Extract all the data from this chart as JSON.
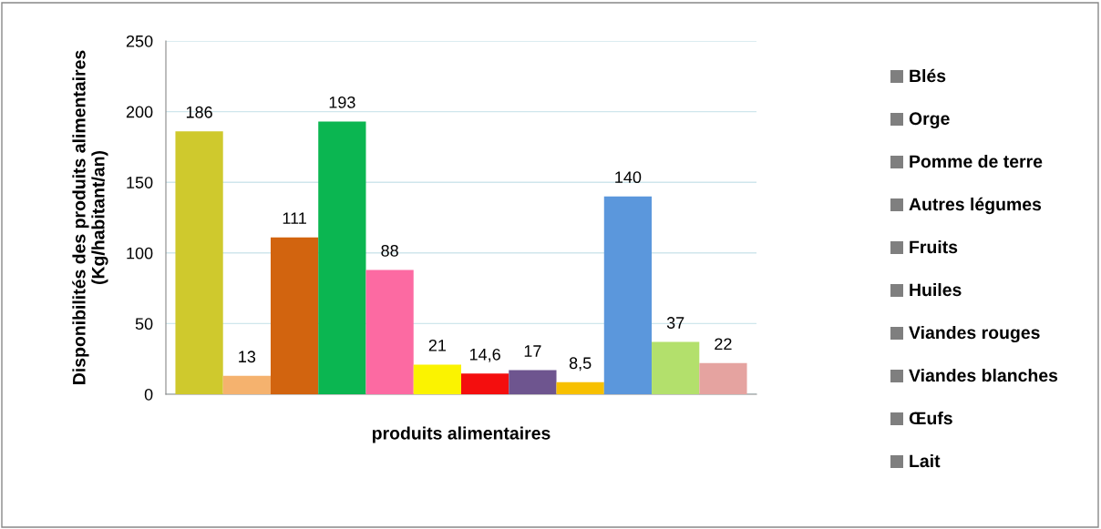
{
  "chart_data": {
    "type": "bar",
    "xlabel": "produits alimentaires",
    "ylabel": "Disponibilités des produits alimentaires\n(Kg/habitant/an)",
    "categories": [
      null,
      null,
      null,
      null,
      null,
      null,
      null,
      null,
      null,
      null,
      null,
      null
    ],
    "values": [
      186,
      13,
      111,
      193,
      88,
      21,
      14.6,
      17,
      8.5,
      140,
      37,
      22
    ],
    "value_labels": [
      "186",
      "13",
      "111",
      "193",
      "88",
      "21",
      "14,6",
      "17",
      "8,5",
      "140",
      "37",
      "22"
    ],
    "colors": [
      "#cfc92d",
      "#f5b26e",
      "#d2640f",
      "#0bb651",
      "#fc6aa2",
      "#fbf300",
      "#f40e0e",
      "#6e558f",
      "#f7c000",
      "#5b97dc",
      "#b3e06c",
      "#e5a3a0"
    ],
    "ylim": [
      0,
      250
    ],
    "yticks": [
      0,
      50,
      100,
      150,
      200,
      250
    ],
    "grid": "y",
    "annotations": [
      "Blés",
      "Orge",
      "Pomme de terre",
      "Autres légumes",
      "Fruits",
      "Huiles",
      "Viandes rouges",
      "Viandes blanches",
      "Œufs",
      "Lait"
    ]
  }
}
